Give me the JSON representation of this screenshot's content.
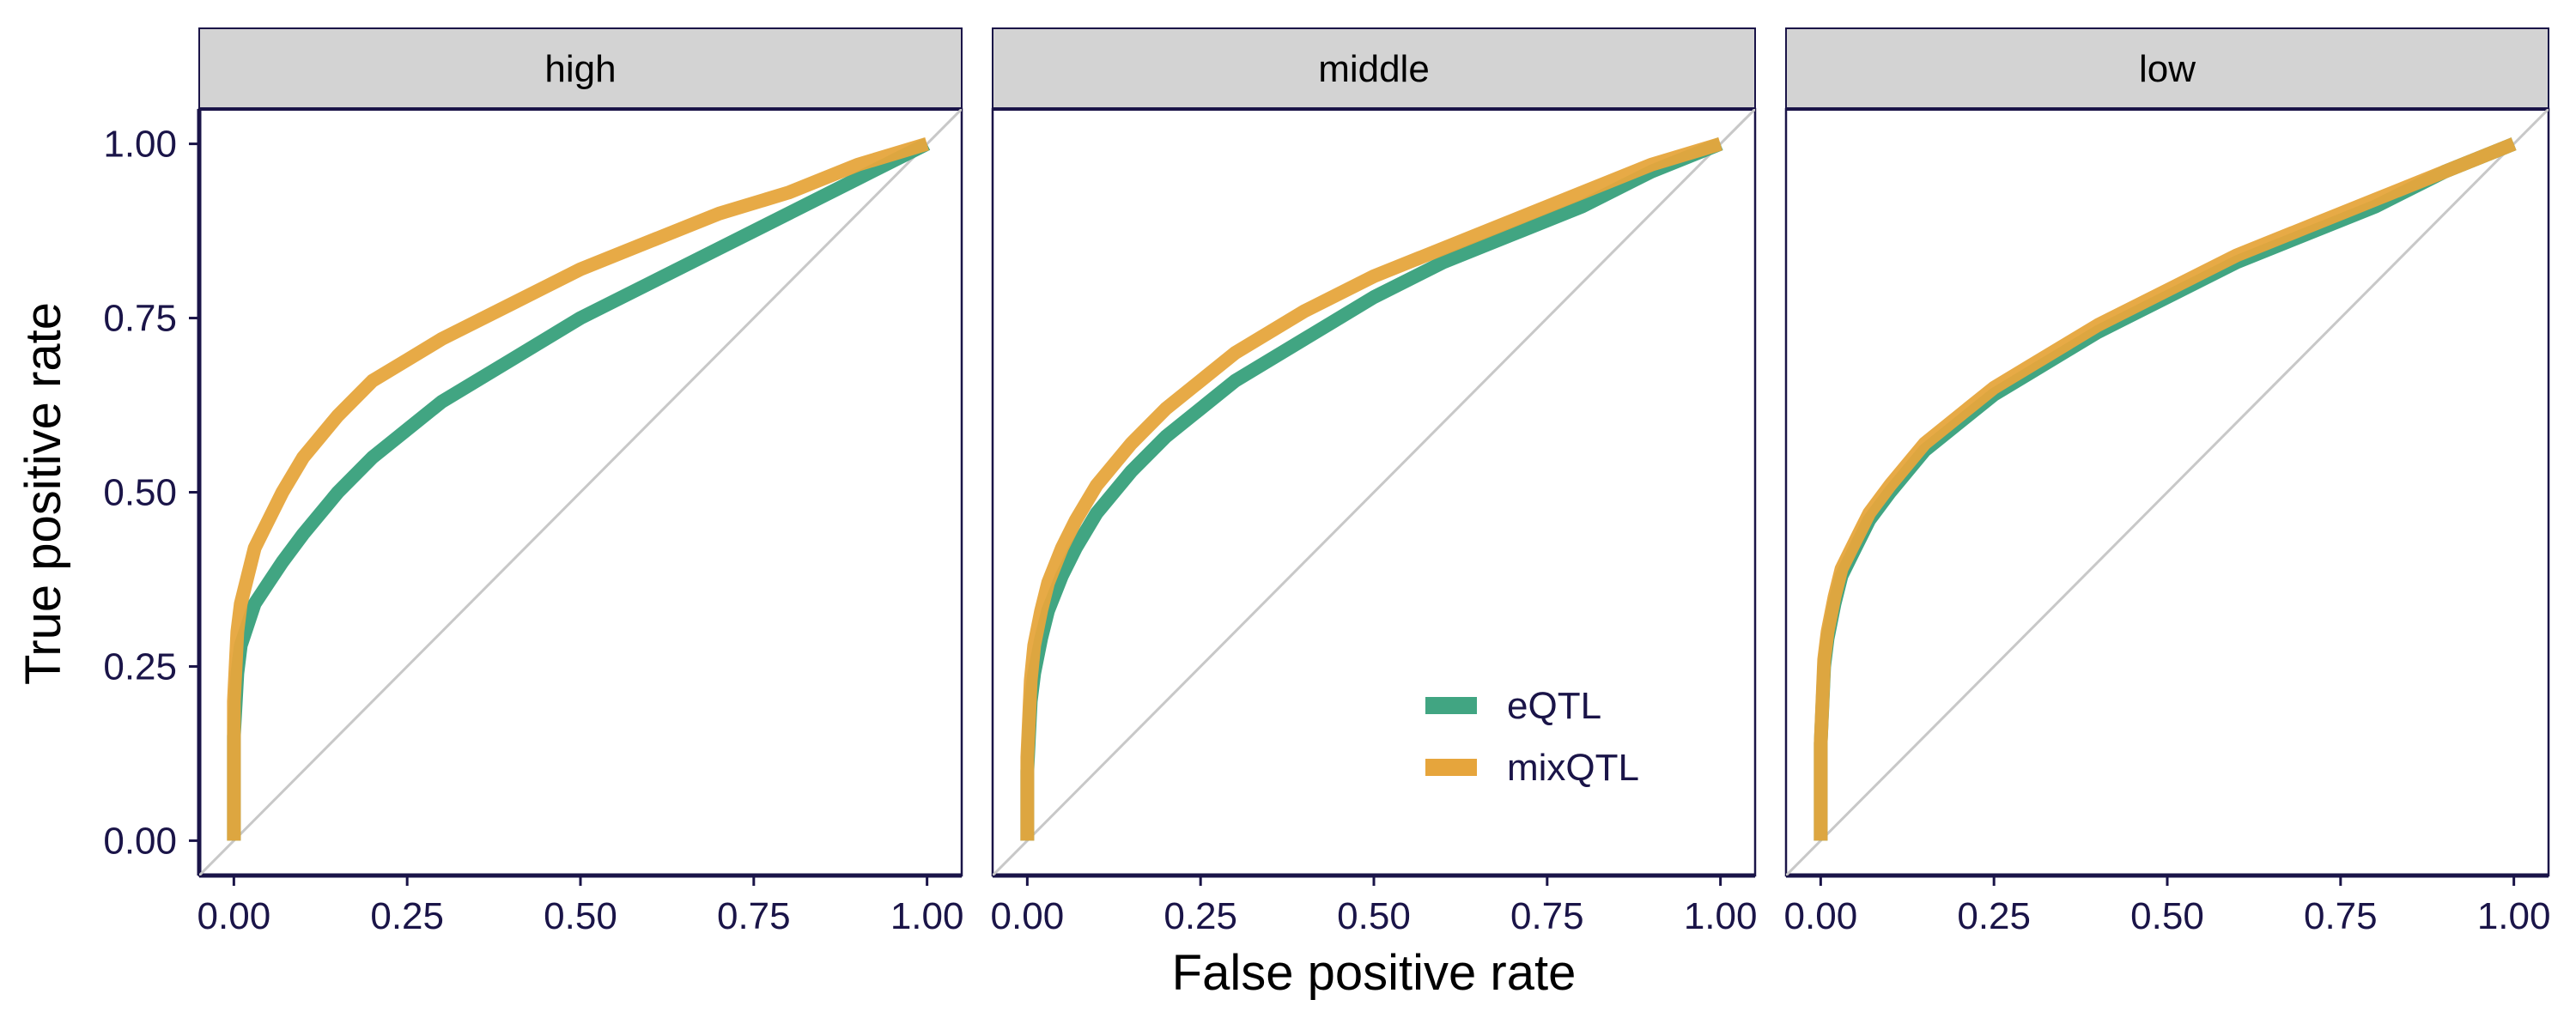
{
  "chart_data": {
    "type": "line",
    "xlabel": "False positive rate",
    "ylabel": "True positive rate",
    "xlim": [
      -0.05,
      1.05
    ],
    "ylim": [
      -0.05,
      1.05
    ],
    "x_ticks": [
      "0.00",
      "0.25",
      "0.50",
      "0.75",
      "1.00"
    ],
    "y_ticks": [
      "0.00",
      "0.25",
      "0.50",
      "0.75",
      "1.00"
    ],
    "grid": false,
    "reference_line": {
      "from": [
        0,
        0
      ],
      "to": [
        1,
        1
      ],
      "color": "#c8c8c8"
    },
    "legend": {
      "position": "inside-bottom-right of middle panel",
      "entries": [
        {
          "name": "eQTL",
          "color": "#41a582"
        },
        {
          "name": "mixQTL",
          "color": "#e6a53c"
        }
      ]
    },
    "panels": [
      {
        "label": "high",
        "series": [
          {
            "name": "eQTL",
            "color": "#41a582",
            "x": [
              0,
              0,
              0.005,
              0.01,
              0.02,
              0.03,
              0.05,
              0.07,
              0.1,
              0.15,
              0.2,
              0.25,
              0.3,
              0.4,
              0.5,
              0.6,
              0.7,
              0.8,
              0.9,
              1.0
            ],
            "y": [
              0,
              0.15,
              0.24,
              0.28,
              0.31,
              0.34,
              0.37,
              0.4,
              0.44,
              0.5,
              0.55,
              0.59,
              0.63,
              0.69,
              0.75,
              0.8,
              0.85,
              0.9,
              0.95,
              1.0
            ]
          },
          {
            "name": "mixQTL",
            "color": "#e6a53c",
            "x": [
              0,
              0,
              0.005,
              0.01,
              0.02,
              0.03,
              0.05,
              0.07,
              0.1,
              0.15,
              0.2,
              0.25,
              0.3,
              0.4,
              0.5,
              0.6,
              0.7,
              0.8,
              0.9,
              1.0
            ],
            "y": [
              0,
              0.2,
              0.3,
              0.34,
              0.38,
              0.42,
              0.46,
              0.5,
              0.55,
              0.61,
              0.66,
              0.69,
              0.72,
              0.77,
              0.82,
              0.86,
              0.9,
              0.93,
              0.97,
              1.0
            ]
          }
        ]
      },
      {
        "label": "middle",
        "series": [
          {
            "name": "eQTL",
            "color": "#41a582",
            "x": [
              0,
              0,
              0.005,
              0.01,
              0.02,
              0.03,
              0.05,
              0.07,
              0.1,
              0.15,
              0.2,
              0.25,
              0.3,
              0.4,
              0.5,
              0.6,
              0.7,
              0.8,
              0.9,
              1.0
            ],
            "y": [
              0,
              0.1,
              0.2,
              0.24,
              0.29,
              0.33,
              0.38,
              0.42,
              0.47,
              0.53,
              0.58,
              0.62,
              0.66,
              0.72,
              0.78,
              0.83,
              0.87,
              0.91,
              0.96,
              1.0
            ]
          },
          {
            "name": "mixQTL",
            "color": "#e6a53c",
            "x": [
              0,
              0,
              0.005,
              0.01,
              0.02,
              0.03,
              0.05,
              0.07,
              0.1,
              0.15,
              0.2,
              0.25,
              0.3,
              0.4,
              0.5,
              0.6,
              0.7,
              0.8,
              0.9,
              1.0
            ],
            "y": [
              0,
              0.12,
              0.23,
              0.28,
              0.33,
              0.37,
              0.42,
              0.46,
              0.51,
              0.57,
              0.62,
              0.66,
              0.7,
              0.76,
              0.81,
              0.85,
              0.89,
              0.93,
              0.97,
              1.0
            ]
          }
        ]
      },
      {
        "label": "low",
        "series": [
          {
            "name": "eQTL",
            "color": "#41a582",
            "x": [
              0,
              0,
              0.005,
              0.01,
              0.02,
              0.03,
              0.05,
              0.07,
              0.1,
              0.15,
              0.2,
              0.25,
              0.3,
              0.4,
              0.5,
              0.6,
              0.7,
              0.8,
              0.9,
              1.0
            ],
            "y": [
              0,
              0.14,
              0.25,
              0.29,
              0.34,
              0.38,
              0.42,
              0.46,
              0.5,
              0.56,
              0.6,
              0.64,
              0.67,
              0.73,
              0.78,
              0.83,
              0.87,
              0.91,
              0.96,
              1.0
            ]
          },
          {
            "name": "mixQTL",
            "color": "#e6a53c",
            "x": [
              0,
              0,
              0.005,
              0.01,
              0.02,
              0.03,
              0.05,
              0.07,
              0.1,
              0.15,
              0.2,
              0.25,
              0.3,
              0.4,
              0.5,
              0.6,
              0.7,
              0.8,
              0.9,
              1.0
            ],
            "y": [
              0,
              0.14,
              0.26,
              0.3,
              0.35,
              0.39,
              0.43,
              0.47,
              0.51,
              0.57,
              0.61,
              0.65,
              0.68,
              0.74,
              0.79,
              0.84,
              0.88,
              0.92,
              0.96,
              1.0
            ]
          }
        ]
      }
    ]
  }
}
